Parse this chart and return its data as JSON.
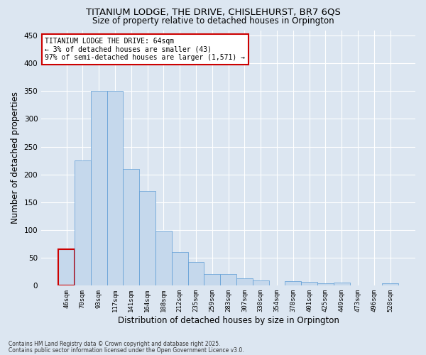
{
  "title_line1": "TITANIUM LODGE, THE DRIVE, CHISLEHURST, BR7 6QS",
  "title_line2": "Size of property relative to detached houses in Orpington",
  "xlabel": "Distribution of detached houses by size in Orpington",
  "ylabel": "Number of detached properties",
  "categories": [
    "46sqm",
    "70sqm",
    "93sqm",
    "117sqm",
    "141sqm",
    "164sqm",
    "188sqm",
    "212sqm",
    "235sqm",
    "259sqm",
    "283sqm",
    "307sqm",
    "330sqm",
    "354sqm",
    "378sqm",
    "401sqm",
    "425sqm",
    "449sqm",
    "473sqm",
    "496sqm",
    "520sqm"
  ],
  "values": [
    65,
    225,
    350,
    350,
    210,
    170,
    98,
    60,
    42,
    20,
    20,
    13,
    9,
    0,
    7,
    6,
    4,
    5,
    0,
    0,
    3
  ],
  "bar_color": "#c5d8ec",
  "bar_edge_color": "#5b9bd5",
  "highlight_bar_index": 0,
  "highlight_bar_edge_color": "#cc0000",
  "annotation_text": "TITANIUM LODGE THE DRIVE: 64sqm\n← 3% of detached houses are smaller (43)\n97% of semi-detached houses are larger (1,571) →",
  "annotation_box_edgecolor": "#cc0000",
  "annotation_box_facecolor": "#ffffff",
  "ylim": [
    0,
    460
  ],
  "yticks": [
    0,
    50,
    100,
    150,
    200,
    250,
    300,
    350,
    400,
    450
  ],
  "background_color": "#dce6f1",
  "plot_background_color": "#dce6f1",
  "grid_color": "#ffffff",
  "footer_line1": "Contains HM Land Registry data © Crown copyright and database right 2025.",
  "footer_line2": "Contains public sector information licensed under the Open Government Licence v3.0."
}
